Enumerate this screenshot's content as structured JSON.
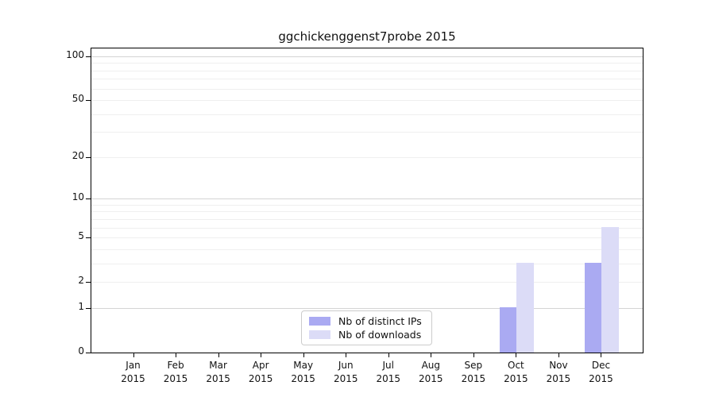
{
  "title": "ggchickenggenst7probe 2015",
  "colors": {
    "bar_distinct_ips": "#aaaaf2",
    "bar_downloads": "#dcdcf7",
    "grid_major": "#d4d4d4",
    "grid_minor": "#efefef",
    "axis": "#000000",
    "legend_border": "#cccccc",
    "text": "#111111"
  },
  "legend": {
    "items": [
      {
        "label": "Nb of distinct IPs",
        "color": "#aaaaf2"
      },
      {
        "label": "Nb of downloads",
        "color": "#dcdcf7"
      }
    ]
  },
  "chart_data": {
    "type": "bar",
    "title": "ggchickenggenst7probe 2015",
    "categories": [
      {
        "month": "Jan",
        "year": "2015"
      },
      {
        "month": "Feb",
        "year": "2015"
      },
      {
        "month": "Mar",
        "year": "2015"
      },
      {
        "month": "Apr",
        "year": "2015"
      },
      {
        "month": "May",
        "year": "2015"
      },
      {
        "month": "Jun",
        "year": "2015"
      },
      {
        "month": "Jul",
        "year": "2015"
      },
      {
        "month": "Aug",
        "year": "2015"
      },
      {
        "month": "Sep",
        "year": "2015"
      },
      {
        "month": "Oct",
        "year": "2015"
      },
      {
        "month": "Nov",
        "year": "2015"
      },
      {
        "month": "Dec",
        "year": "2015"
      }
    ],
    "series": [
      {
        "name": "Nb of distinct IPs",
        "color": "#aaaaf2",
        "values": [
          0,
          0,
          0,
          0,
          0,
          0,
          0,
          0,
          0,
          1,
          0,
          3
        ]
      },
      {
        "name": "Nb of downloads",
        "color": "#dcdcf7",
        "values": [
          0,
          0,
          0,
          0,
          0,
          0,
          0,
          0,
          0,
          3,
          0,
          6
        ]
      }
    ],
    "y_scale": "log10(1+v)",
    "y_ticks": [
      0,
      1,
      2,
      5,
      10,
      20,
      50,
      100
    ],
    "y_grid_major": [
      1,
      10,
      100
    ],
    "y_grid_minor": [
      2,
      3,
      4,
      5,
      6,
      7,
      8,
      9,
      20,
      30,
      40,
      50,
      60,
      70,
      80,
      90
    ],
    "ylim": [
      0,
      113
    ],
    "xlabel": "",
    "ylabel": "",
    "grid": "horizontal",
    "legend_position": "lower-center-inside"
  }
}
